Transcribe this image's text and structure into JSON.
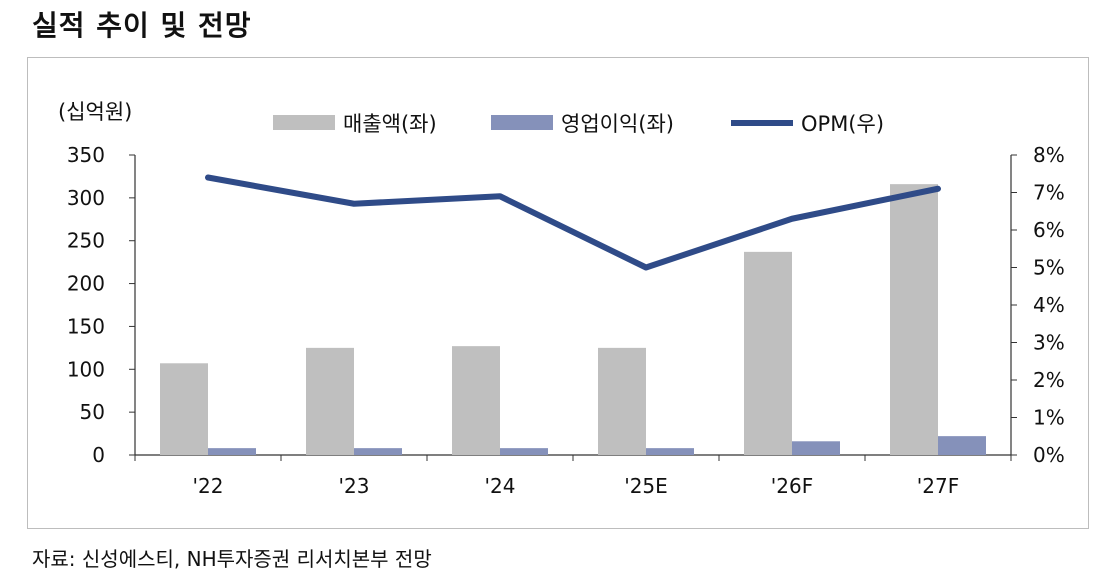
{
  "title": "실적 추이 및 전망",
  "source": "자료: 신성에스티, NH투자증권 리서치본부 전망",
  "chart_data": {
    "type": "bar",
    "unit_label": "(십억원)",
    "categories": [
      "'22",
      "'23",
      "'24",
      "'25E",
      "'26F",
      "'27F"
    ],
    "series": [
      {
        "name": "매출액(좌)",
        "type": "bar",
        "axis": "left",
        "color": "#bfbfbf",
        "values": [
          107,
          125,
          127,
          125,
          237,
          316
        ]
      },
      {
        "name": "영업이익(좌)",
        "type": "bar",
        "axis": "left",
        "color": "#8591ba",
        "values": [
          8,
          8,
          8,
          8,
          16,
          22
        ]
      },
      {
        "name": "OPM(우)",
        "type": "line",
        "axis": "right",
        "color": "#2f4b88",
        "values": [
          7.4,
          6.7,
          6.9,
          5.0,
          6.3,
          7.1
        ]
      }
    ],
    "y_left": {
      "min": 0,
      "max": 350,
      "ticks": [
        "0",
        "50",
        "100",
        "150",
        "200",
        "250",
        "300",
        "350"
      ]
    },
    "y_right": {
      "min": 0,
      "max": 8,
      "ticks": [
        "0%",
        "1%",
        "2%",
        "3%",
        "4%",
        "5%",
        "6%",
        "7%",
        "8%"
      ]
    },
    "legend_position": "top-center",
    "grid": false
  }
}
